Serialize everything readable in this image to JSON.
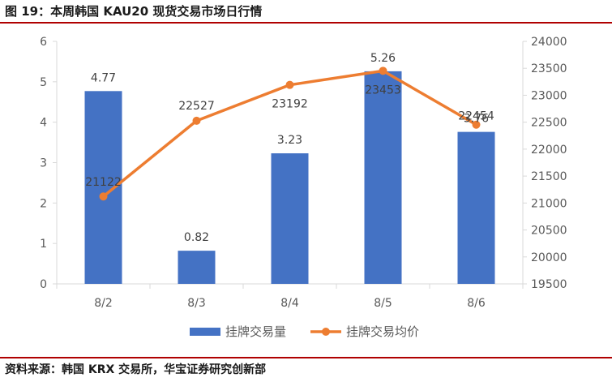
{
  "header": {
    "title": "图 19：本周韩国 KAU20 现货交易市场日行情"
  },
  "footer": {
    "source": "资料来源：韩国 KRX 交易所，华宝证券研究创新部"
  },
  "colors": {
    "bar": "#4472C4",
    "line": "#ED7D31",
    "rule": "#B00000",
    "text": "#595959",
    "axis": "#D9D9D9"
  },
  "chart_data": {
    "type": "bar",
    "title": "",
    "categories": [
      "8/2",
      "8/3",
      "8/4",
      "8/5",
      "8/6"
    ],
    "series": [
      {
        "name": "挂牌交易量",
        "type": "bar",
        "axis": "left",
        "values": [
          4.77,
          0.82,
          3.23,
          5.26,
          3.76
        ]
      },
      {
        "name": "挂牌交易均价",
        "type": "line",
        "axis": "right",
        "values": [
          21122,
          22527,
          23192,
          23453,
          22454
        ]
      }
    ],
    "y_left": {
      "min": 0,
      "max": 6,
      "ticks": [
        0,
        1,
        2,
        3,
        4,
        5,
        6
      ]
    },
    "y_right": {
      "min": 19500,
      "max": 24000,
      "ticks": [
        19500,
        20000,
        20500,
        21000,
        21500,
        22000,
        22500,
        23000,
        23500,
        24000
      ]
    },
    "grid": false,
    "legend_position": "bottom"
  }
}
